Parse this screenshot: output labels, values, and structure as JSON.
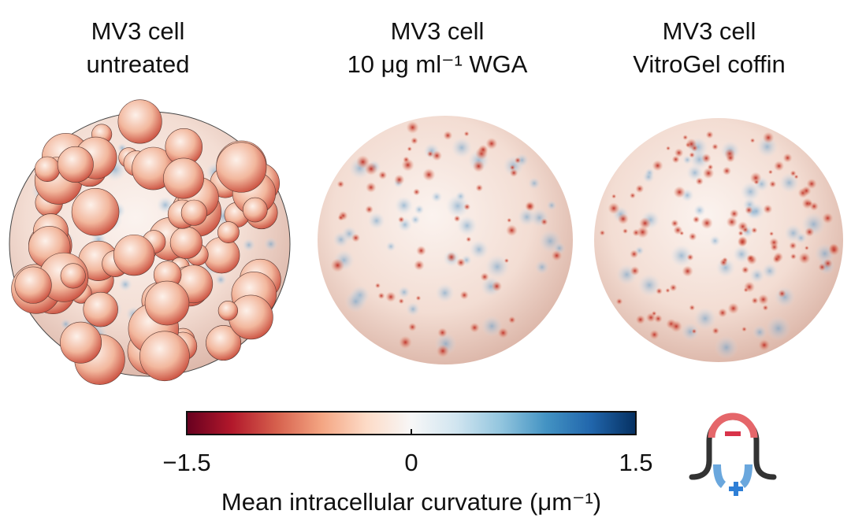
{
  "panels": [
    {
      "title_lines": [
        "MV3 cell",
        "untreated"
      ]
    },
    {
      "title_lines": [
        "MV3 cell",
        "10 μg ml⁻¹ WGA"
      ]
    },
    {
      "title_lines": [
        "MV3 cell",
        "VitroGel coffin"
      ]
    }
  ],
  "colorbar": {
    "label": "Mean intracellular curvature (μm⁻¹)",
    "range": [
      -1.5,
      1.5
    ],
    "ticks": [
      {
        "value": -1.5,
        "label": "−1.5"
      },
      0,
      1.5
    ]
  }
}
